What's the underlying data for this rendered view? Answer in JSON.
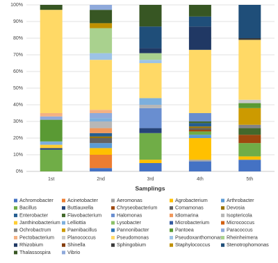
{
  "chart_data": {
    "type": "stacked_bar",
    "x_label": "Samplings",
    "categories": [
      "1st",
      "2nd",
      "3rd",
      "4th",
      "5th"
    ],
    "ylim": [
      0,
      100
    ],
    "yticks": [
      {
        "value": 0,
        "label": "0%"
      },
      {
        "value": 10,
        "label": "10%"
      },
      {
        "value": 20,
        "label": "20%"
      },
      {
        "value": 30,
        "label": "30%"
      },
      {
        "value": 40,
        "label": "40%"
      },
      {
        "value": 50,
        "label": "50%"
      },
      {
        "value": 60,
        "label": "60%"
      },
      {
        "value": 70,
        "label": "70%"
      },
      {
        "value": 80,
        "label": "80%"
      },
      {
        "value": 90,
        "label": "90%"
      },
      {
        "value": 100,
        "label": "100%"
      }
    ],
    "grid": true,
    "series": [
      {
        "name": "Achromobacter",
        "color": "#4472c4",
        "values": [
          0,
          2,
          5,
          6,
          7
        ]
      },
      {
        "name": "Acinetobacter",
        "color": "#ed7d31",
        "values": [
          0,
          8,
          0,
          0,
          0
        ]
      },
      {
        "name": "Aeromonas",
        "color": "#a5a5a5",
        "values": [
          0,
          0,
          0,
          1,
          0
        ]
      },
      {
        "name": "Agrobacterium",
        "color": "#ffc000",
        "values": [
          0,
          4,
          2,
          13,
          2
        ]
      },
      {
        "name": "Arthrobacter",
        "color": "#5b9bd5",
        "values": [
          0,
          3,
          0,
          2,
          0
        ]
      },
      {
        "name": "Bacillus",
        "color": "#70ad47",
        "values": [
          13,
          0,
          16,
          2,
          8
        ]
      },
      {
        "name": "Buttiauxella",
        "color": "#264478",
        "values": [
          1,
          0,
          3,
          0,
          0
        ]
      },
      {
        "name": "Chryseobacterium",
        "color": "#9e480e",
        "values": [
          0,
          0,
          0,
          1,
          5
        ]
      },
      {
        "name": "Comamonas",
        "color": "#636363",
        "values": [
          0,
          3,
          0,
          1,
          0
        ]
      },
      {
        "name": "Devosia",
        "color": "#997300",
        "values": [
          0,
          1,
          0,
          1,
          0
        ]
      },
      {
        "name": "Enterobacter",
        "color": "#255e91",
        "values": [
          0,
          2,
          0,
          2,
          0
        ]
      },
      {
        "name": "Flavobacterium",
        "color": "#43682b",
        "values": [
          0,
          0,
          0,
          1,
          4
        ]
      },
      {
        "name": "Halomonas",
        "color": "#698ed0",
        "values": [
          0,
          0,
          12,
          5,
          0
        ]
      },
      {
        "name": "Idiomarina",
        "color": "#f1975a",
        "values": [
          0,
          3,
          0,
          0,
          0
        ]
      },
      {
        "name": "Isoptericola",
        "color": "#b7b7b7",
        "values": [
          0,
          4,
          2,
          0,
          0
        ]
      },
      {
        "name": "Janthinobacterium",
        "color": "#ffcd33",
        "values": [
          2,
          0,
          0,
          0,
          0
        ]
      },
      {
        "name": "Lelliottia",
        "color": "#7cafdd",
        "values": [
          2,
          2,
          4,
          0,
          0
        ]
      },
      {
        "name": "Lysobacter",
        "color": "#8cc168",
        "values": [
          0,
          0,
          0,
          0,
          0
        ]
      },
      {
        "name": "Microbacterium",
        "color": "#335aa1",
        "values": [
          0,
          0,
          0,
          0,
          0
        ]
      },
      {
        "name": "Micrococcus",
        "color": "#d26012",
        "values": [
          0,
          0,
          0,
          0,
          0
        ]
      },
      {
        "name": "Ochrobactrum",
        "color": "#848484",
        "values": [
          0,
          0,
          0,
          0,
          2
        ]
      },
      {
        "name": "Paenibacillus",
        "color": "#cc9a00",
        "values": [
          0,
          0,
          0,
          0,
          10
        ]
      },
      {
        "name": "Pannonibacter",
        "color": "#2e75b6",
        "values": [
          0,
          0,
          0,
          0,
          0
        ]
      },
      {
        "name": "Pantoea",
        "color": "#5a9a34",
        "values": [
          13,
          0,
          0,
          0,
          3
        ]
      },
      {
        "name": "Paracoccus",
        "color": "#8faadc",
        "values": [
          2,
          3,
          0,
          0,
          0
        ]
      },
      {
        "name": "Pectobacterium",
        "color": "#f4b183",
        "values": [
          2,
          2,
          0,
          0,
          0
        ]
      },
      {
        "name": "Planococcus",
        "color": "#c9c9c9",
        "values": [
          0,
          0,
          0,
          0,
          2
        ]
      },
      {
        "name": "Pseudomonas",
        "color": "#ffd966",
        "values": [
          62,
          30,
          21,
          38,
          36
        ]
      },
      {
        "name": "Pseudoxanthomonas",
        "color": "#9dc3e6",
        "values": [
          0,
          4,
          2,
          0,
          0
        ]
      },
      {
        "name": "Rheinheimera",
        "color": "#a9d18e",
        "values": [
          0,
          15,
          4,
          0,
          0
        ]
      },
      {
        "name": "Rhizobium",
        "color": "#203864",
        "values": [
          0,
          0,
          3,
          14,
          0
        ]
      },
      {
        "name": "Shinella",
        "color": "#843c0c",
        "values": [
          0,
          0,
          0,
          0,
          0
        ]
      },
      {
        "name": "Sphingobium",
        "color": "#3a3a3a",
        "values": [
          0,
          0,
          0,
          0,
          1
        ]
      },
      {
        "name": "Staphylococcus",
        "color": "#bf9000",
        "values": [
          0,
          3,
          0,
          0,
          0
        ]
      },
      {
        "name": "Stenotrophomonas",
        "color": "#1f4e79",
        "values": [
          0,
          0,
          13,
          6,
          20
        ]
      },
      {
        "name": "Thalassospira",
        "color": "#375623",
        "values": [
          3,
          8,
          13,
          7,
          0
        ]
      },
      {
        "name": "Vibrio",
        "color": "#8ea9db",
        "values": [
          0,
          3,
          0,
          0,
          0
        ]
      }
    ]
  }
}
